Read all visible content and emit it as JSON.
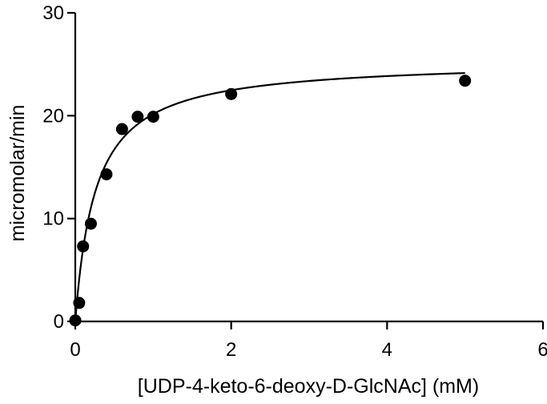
{
  "chart_data": {
    "type": "scatter",
    "title": "",
    "xlabel": "[UDP-4-keto-6-deoxy-D-GlcNAc] (mM)",
    "ylabel": "micromolar/min",
    "xlim": [
      0,
      6
    ],
    "ylim": [
      0,
      30
    ],
    "xticks": [
      "0",
      "2",
      "4",
      "6"
    ],
    "yticks": [
      "0",
      "10",
      "20",
      "30"
    ],
    "grid": false,
    "legend": "none",
    "points": [
      {
        "x": 0,
        "y": 0.1
      },
      {
        "x": 0.05,
        "y": 1.8
      },
      {
        "x": 0.1,
        "y": 7.3
      },
      {
        "x": 0.2,
        "y": 9.5
      },
      {
        "x": 0.4,
        "y": 14.3
      },
      {
        "x": 0.6,
        "y": 18.7
      },
      {
        "x": 0.8,
        "y": 19.9
      },
      {
        "x": 1.0,
        "y": 19.9
      },
      {
        "x": 2.0,
        "y": 22.1
      },
      {
        "x": 5.0,
        "y": 23.4
      }
    ],
    "fit": {
      "model": "Michaelis-Menten",
      "vmax": 25.4,
      "km": 0.26,
      "x_range": [
        0,
        5
      ]
    }
  }
}
